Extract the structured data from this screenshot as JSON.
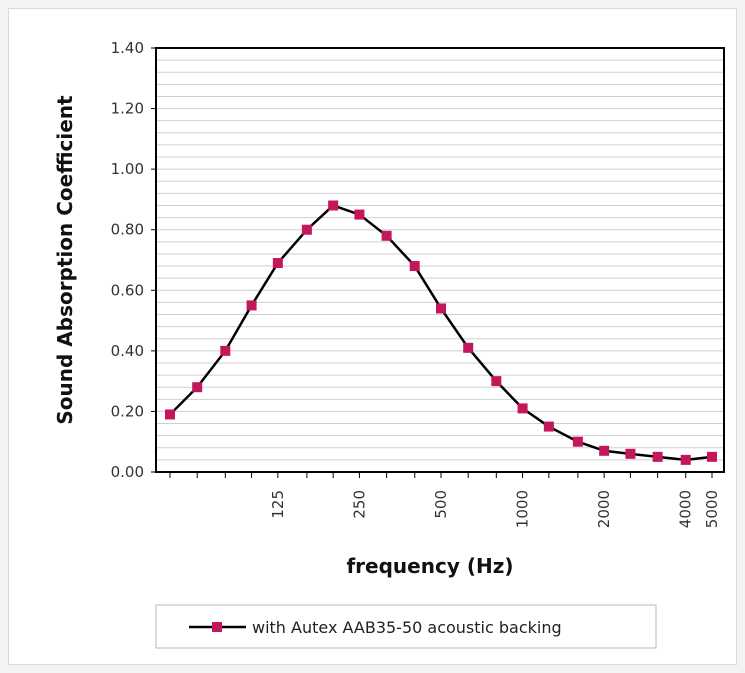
{
  "chart_data": {
    "type": "line",
    "title": "",
    "xlabel": "frequency (Hz)",
    "ylabel": "Sound Absorption Coefficient",
    "x_scale": "log",
    "xlim": [
      50,
      5000
    ],
    "ylim": [
      0,
      1.4
    ],
    "yticks": [
      "0.00",
      "0.20",
      "0.40",
      "0.60",
      "0.80",
      "1.00",
      "1.20",
      "1.40"
    ],
    "xtick_labels": [
      {
        "value": 125,
        "label": "125"
      },
      {
        "value": 250,
        "label": "250"
      },
      {
        "value": 500,
        "label": "500"
      },
      {
        "value": 1000,
        "label": "1000"
      },
      {
        "value": 2000,
        "label": "2000"
      },
      {
        "value": 4000,
        "label": "4000"
      },
      {
        "value": 5000,
        "label": "5000"
      }
    ],
    "grid": true,
    "grid_color": "#cfcfcf",
    "legend_position": "bottom",
    "series": [
      {
        "name": "with Autex AAB35-50 acoustic backing",
        "color": "#c2185b",
        "line_color": "#000000",
        "marker": "square",
        "x": [
          50,
          63,
          80,
          100,
          125,
          160,
          200,
          250,
          315,
          400,
          500,
          630,
          800,
          1000,
          1250,
          1600,
          2000,
          2500,
          3150,
          4000,
          5000
        ],
        "y": [
          0.19,
          0.28,
          0.4,
          0.55,
          0.69,
          0.8,
          0.88,
          0.85,
          0.78,
          0.68,
          0.54,
          0.41,
          0.3,
          0.21,
          0.15,
          0.1,
          0.07,
          0.06,
          0.05,
          0.04,
          0.05
        ]
      }
    ]
  }
}
